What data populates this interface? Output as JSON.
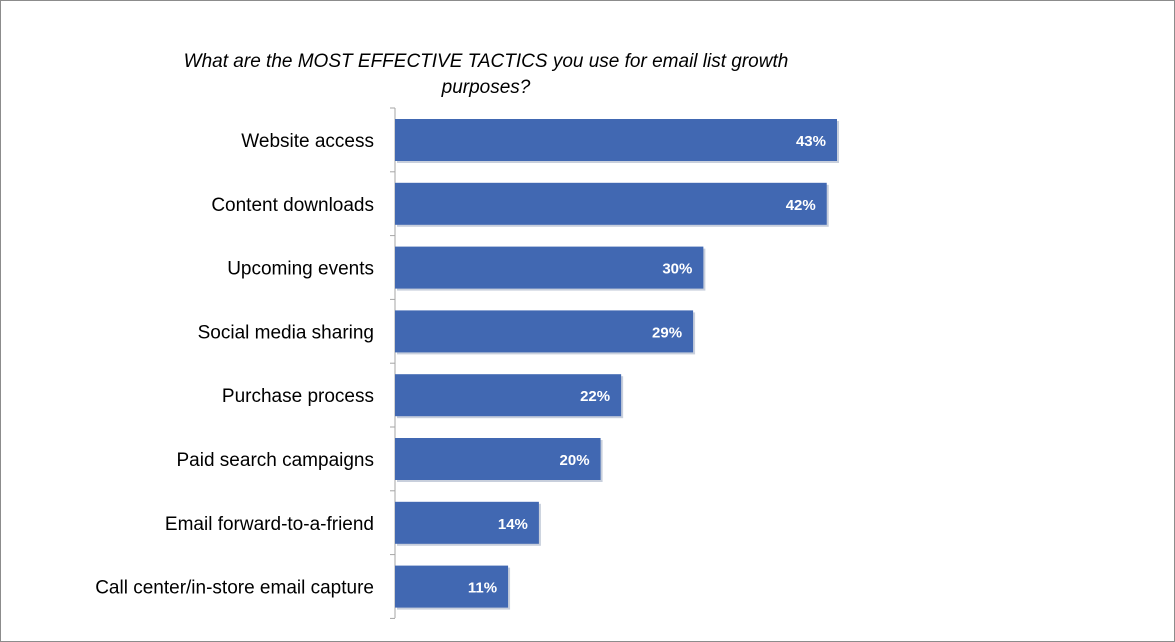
{
  "chart_data": {
    "type": "bar",
    "orientation": "horizontal",
    "title": "What are the MOST EFFECTIVE TACTICS you use for email list growth purposes?",
    "categories": [
      "Website access",
      "Content downloads",
      "Upcoming events",
      "Social media sharing",
      "Purchase process",
      "Paid search campaigns",
      "Email forward-to-a-friend",
      "Call center/in-store email capture"
    ],
    "values": [
      43,
      42,
      30,
      29,
      22,
      20,
      14,
      11
    ],
    "value_labels": [
      "43%",
      "42%",
      "30%",
      "29%",
      "22%",
      "20%",
      "14%",
      "11%"
    ],
    "unit": "%",
    "xlabel": "",
    "ylabel": "",
    "xlim": [
      0,
      43
    ],
    "grid": false,
    "legend": "none",
    "bar_color": "#4168b2"
  }
}
